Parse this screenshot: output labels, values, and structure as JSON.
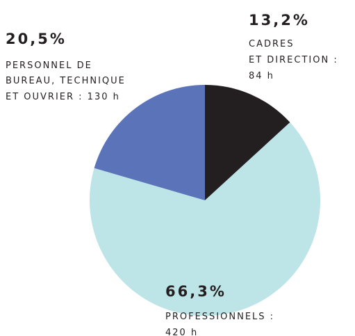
{
  "chart_data": {
    "type": "pie",
    "categories": [
      [
        "CADRES",
        "ET DIRECTION :",
        "84 h"
      ],
      [
        "PROFESSIONNELS :",
        "420 h"
      ],
      [
        "PERSONNEL DE",
        "BUREAU, TECHNIQUE",
        "ET OUVRIER : 130 h"
      ]
    ],
    "values": [
      13.2,
      66.3,
      20.5
    ],
    "value_labels": [
      "13,2%",
      "66,3%",
      "20,5%"
    ],
    "colors": [
      "#231f20",
      "#bde4e6",
      "#5b73b8"
    ]
  }
}
